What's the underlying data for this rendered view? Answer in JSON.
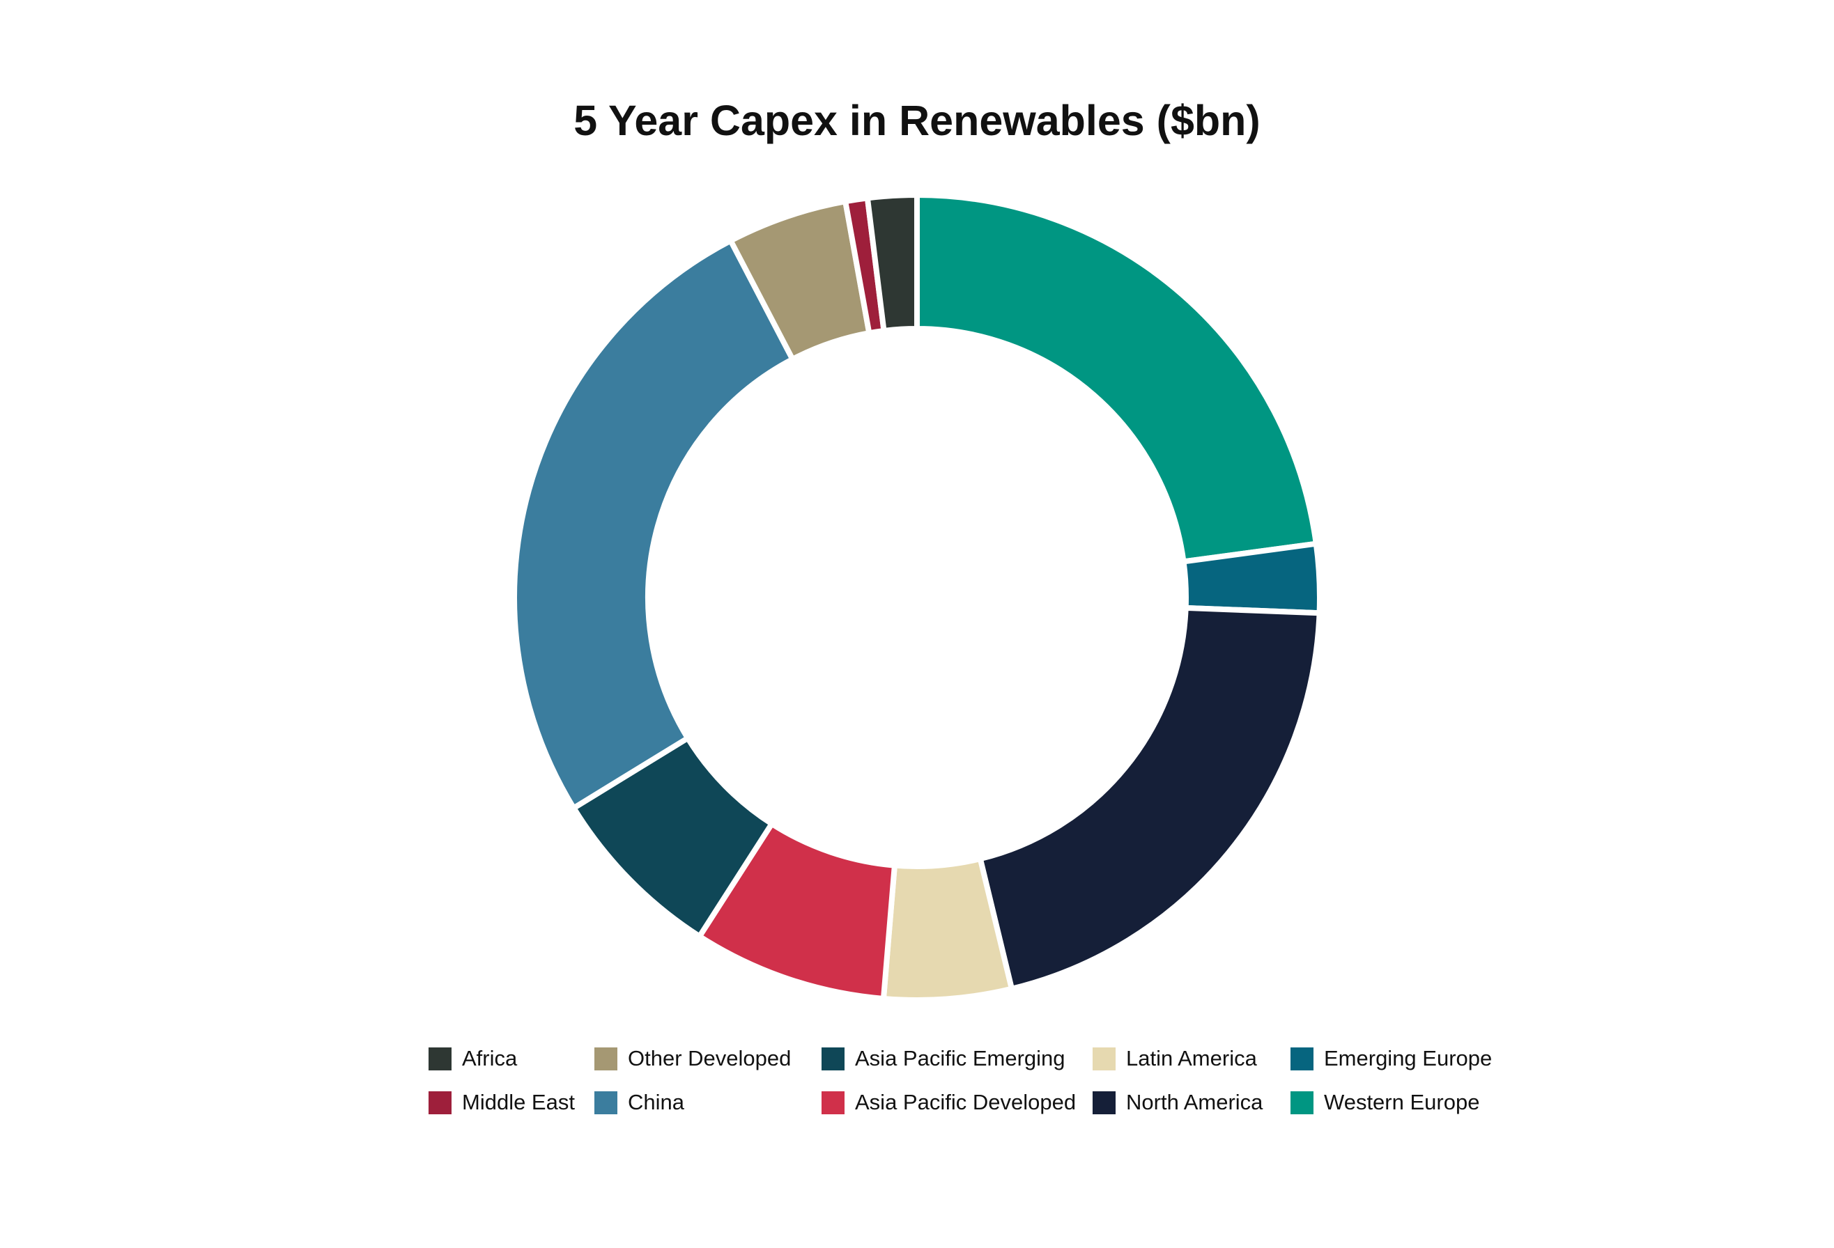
{
  "chart_data": {
    "type": "pie",
    "variant": "donut",
    "title": "5 Year Capex in Renewables ($bn)",
    "series": [
      {
        "name": "Western Europe",
        "value": 23.3,
        "color": "#009682"
      },
      {
        "name": "Emerging Europe",
        "value": 2.8,
        "color": "#06657F"
      },
      {
        "name": "North America",
        "value": 21.0,
        "color": "#151F38"
      },
      {
        "name": "Latin America",
        "value": 5.2,
        "color": "#E6D9B0"
      },
      {
        "name": "Asia Pacific Developed",
        "value": 7.9,
        "color": "#D0304A"
      },
      {
        "name": "Asia Pacific Emerging",
        "value": 7.3,
        "color": "#0F4757"
      },
      {
        "name": "China",
        "value": 26.6,
        "color": "#3B7D9E"
      },
      {
        "name": "Other Developed",
        "value": 4.9,
        "color": "#A59873"
      },
      {
        "name": "Middle East",
        "value": 0.9,
        "color": "#9E1F3B"
      },
      {
        "name": "Africa",
        "value": 2.0,
        "color": "#2E3733"
      }
    ],
    "legend_position": "bottom",
    "legend": [
      {
        "label": "Africa",
        "color": "#2E3733"
      },
      {
        "label": "Middle East",
        "color": "#9E1F3B"
      },
      {
        "label": "Other Developed",
        "color": "#A59873"
      },
      {
        "label": "China",
        "color": "#3B7D9E"
      },
      {
        "label": "Asia Pacific Emerging",
        "color": "#0F4757"
      },
      {
        "label": "Asia Pacific Developed",
        "color": "#D0304A"
      },
      {
        "label": "Latin America",
        "color": "#E6D9B0"
      },
      {
        "label": "North America",
        "color": "#151F38"
      },
      {
        "label": "Emerging Europe",
        "color": "#06657F"
      },
      {
        "label": "Western Europe",
        "color": "#009682"
      }
    ]
  }
}
